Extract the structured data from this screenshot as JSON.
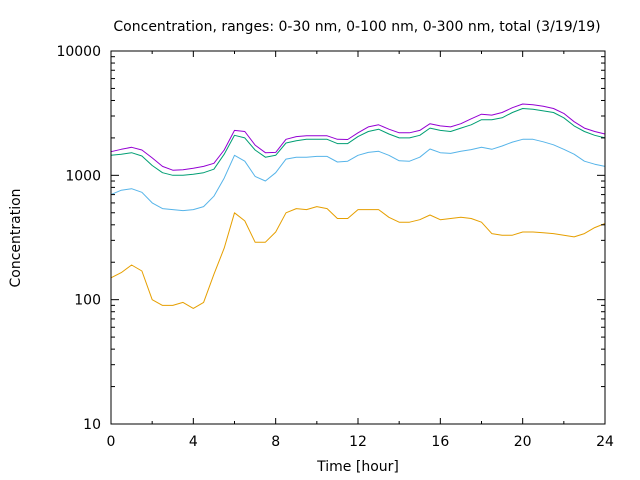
{
  "chart_data": {
    "type": "line",
    "title": "Concentration, ranges: 0-30 nm, 0-100 nm, 0-300 nm, total (3/19/19)",
    "xlabel": "Time [hour]",
    "ylabel": "Concentration",
    "xlim": [
      0,
      24
    ],
    "ylim": [
      10,
      10000
    ],
    "yscale": "log",
    "xticks": [
      0,
      4,
      8,
      12,
      16,
      20,
      24
    ],
    "xtick_labels": [
      "0",
      "4",
      "8",
      "12",
      "16",
      "20",
      "24"
    ],
    "yticks": [
      10,
      100,
      1000,
      10000
    ],
    "ytick_labels": [
      "10",
      "100",
      "1000",
      "10000"
    ],
    "grid": false,
    "legend": false,
    "x": [
      0,
      0.5,
      1,
      1.5,
      2,
      2.5,
      3,
      3.5,
      4,
      4.5,
      5,
      5.5,
      6,
      6.5,
      7,
      7.5,
      8,
      8.5,
      9,
      9.5,
      10,
      10.5,
      11,
      11.5,
      12,
      12.5,
      13,
      13.5,
      14,
      14.5,
      15,
      15.5,
      16,
      16.5,
      17,
      17.5,
      18,
      18.5,
      19,
      19.5,
      20,
      20.5,
      21,
      21.5,
      22,
      22.5,
      23,
      23.5,
      24
    ],
    "series": [
      {
        "color": "#e69f00",
        "values": [
          150,
          165,
          190,
          170,
          100,
          90,
          90,
          95,
          85,
          95,
          160,
          260,
          500,
          430,
          290,
          290,
          350,
          500,
          540,
          530,
          560,
          540,
          450,
          450,
          530,
          530,
          530,
          460,
          420,
          420,
          440,
          480,
          440,
          450,
          460,
          450,
          420,
          340,
          330,
          330,
          350,
          350,
          345,
          340,
          330,
          320,
          340,
          380,
          410
        ]
      },
      {
        "color": "#56b4e9",
        "values": [
          700,
          760,
          780,
          730,
          600,
          540,
          530,
          520,
          530,
          560,
          680,
          950,
          1450,
          1300,
          980,
          900,
          1050,
          1350,
          1400,
          1400,
          1420,
          1420,
          1280,
          1300,
          1450,
          1530,
          1560,
          1450,
          1310,
          1300,
          1400,
          1630,
          1520,
          1500,
          1560,
          1610,
          1680,
          1620,
          1720,
          1850,
          1950,
          1950,
          1860,
          1760,
          1620,
          1480,
          1300,
          1230,
          1180
        ]
      },
      {
        "color": "#009e73",
        "values": [
          1450,
          1480,
          1520,
          1430,
          1200,
          1050,
          1000,
          1000,
          1020,
          1050,
          1120,
          1480,
          2100,
          2000,
          1600,
          1400,
          1450,
          1820,
          1900,
          1950,
          1950,
          1950,
          1800,
          1800,
          2050,
          2250,
          2350,
          2150,
          2000,
          2000,
          2100,
          2400,
          2300,
          2250,
          2400,
          2550,
          2800,
          2800,
          2900,
          3200,
          3450,
          3400,
          3300,
          3200,
          2900,
          2500,
          2250,
          2100,
          2000
        ]
      },
      {
        "color": "#9400d3",
        "values": [
          1550,
          1620,
          1680,
          1600,
          1380,
          1180,
          1100,
          1110,
          1140,
          1180,
          1250,
          1600,
          2300,
          2250,
          1750,
          1520,
          1530,
          1950,
          2050,
          2080,
          2080,
          2080,
          1950,
          1940,
          2200,
          2450,
          2550,
          2350,
          2200,
          2200,
          2300,
          2600,
          2500,
          2450,
          2600,
          2850,
          3100,
          3050,
          3200,
          3500,
          3750,
          3700,
          3600,
          3450,
          3150,
          2700,
          2400,
          2250,
          2150
        ]
      }
    ]
  }
}
